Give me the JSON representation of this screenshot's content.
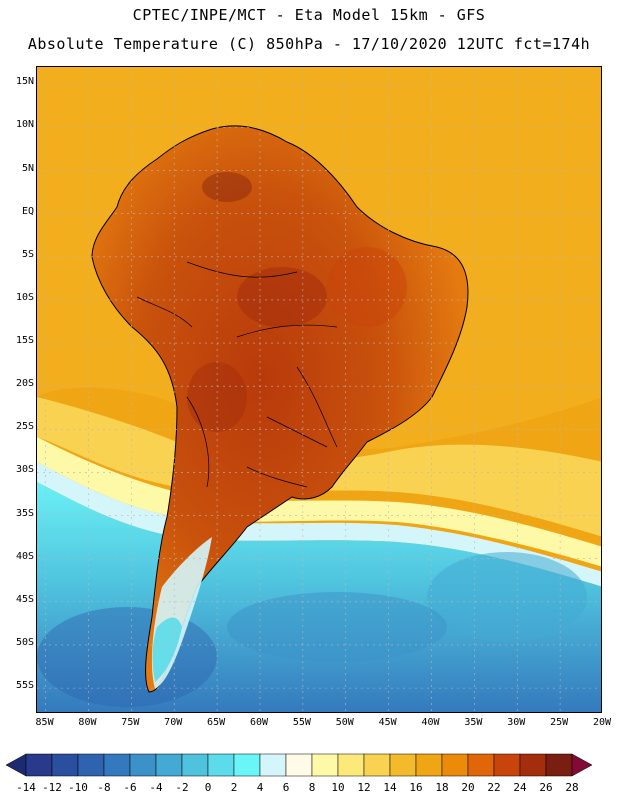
{
  "title_line1": "CPTEC/INPE/MCT -  Eta Model 15km - GFS",
  "title_line2": "Absolute Temperature (C) 850hPa - 17/10/2020 12UTC fct=174h",
  "map": {
    "lat_labels": [
      "15N",
      "10N",
      "5N",
      "EQ",
      "5S",
      "10S",
      "15S",
      "20S",
      "25S",
      "30S",
      "35S",
      "40S",
      "45S",
      "50S",
      "55S"
    ],
    "lat_values": [
      15,
      10,
      5,
      0,
      -5,
      -10,
      -15,
      -20,
      -25,
      -30,
      -35,
      -40,
      -45,
      -50,
      -55
    ],
    "lon_labels": [
      "85W",
      "80W",
      "75W",
      "70W",
      "65W",
      "60W",
      "55W",
      "50W",
      "45W",
      "40W",
      "35W",
      "30W",
      "25W",
      "20W"
    ],
    "lon_values": [
      -85,
      -80,
      -75,
      -70,
      -65,
      -60,
      -55,
      -50,
      -45,
      -40,
      -35,
      -30,
      -25,
      -20
    ],
    "lat_range": [
      -58,
      17
    ],
    "lon_range": [
      -86,
      -20
    ]
  },
  "colorbar": {
    "labels": [
      "-14",
      "-12",
      "-10",
      "-8",
      "-6",
      "-4",
      "-2",
      "0",
      "2",
      "4",
      "6",
      "8",
      "10",
      "12",
      "14",
      "16",
      "18",
      "20",
      "22",
      "24",
      "26",
      "28"
    ],
    "colors": [
      "#273a8c",
      "#2a4f9e",
      "#2f63b0",
      "#3479bd",
      "#3b92c8",
      "#44a9d3",
      "#4fc2de",
      "#5cdcea",
      "#6af5f7",
      "#d4f6fb",
      "#fffbe6",
      "#fef9a6",
      "#fbe97a",
      "#f8d250",
      "#f3bb2c",
      "#f0a514",
      "#ec8a0a",
      "#e1660a",
      "#c9440a",
      "#a42e0c",
      "#7a1e12"
    ],
    "under_color": "#1c2a72",
    "over_color": "#830a36"
  }
}
